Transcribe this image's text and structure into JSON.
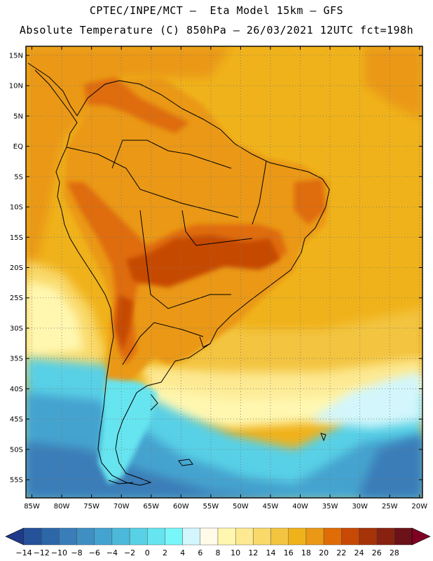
{
  "header": {
    "title_line1": "CPTEC/INPE/MCT –  Eta Model 15km – GFS",
    "title_line2": "Absolute Temperature (C) 850hPa – 26/03/2021 12UTC fct=198h"
  },
  "map": {
    "region": "South America",
    "variable": "Absolute Temperature (C) 850hPa",
    "lon_range": [
      -86,
      -19.5
    ],
    "lat_range": [
      -58,
      16.5
    ],
    "lat_ticks": [
      "15N",
      "10N",
      "5N",
      "EQ",
      "5S",
      "10S",
      "15S",
      "20S",
      "25S",
      "30S",
      "35S",
      "40S",
      "45S",
      "50S",
      "55S"
    ],
    "lat_values": [
      15,
      10,
      5,
      0,
      -5,
      -10,
      -15,
      -20,
      -25,
      -30,
      -35,
      -40,
      -45,
      -50,
      -55
    ],
    "lon_ticks": [
      "85W",
      "80W",
      "75W",
      "70W",
      "65W",
      "60W",
      "55W",
      "50W",
      "45W",
      "40W",
      "35W",
      "30W",
      "25W",
      "20W"
    ],
    "lon_values": [
      -85,
      -80,
      -75,
      -70,
      -65,
      -60,
      -55,
      -50,
      -45,
      -40,
      -35,
      -30,
      -25,
      -20
    ]
  },
  "colorbar": {
    "labels": [
      "-14",
      "-12",
      "-10",
      "-8",
      "-6",
      "-4",
      "-2",
      "0",
      "2",
      "4",
      "6",
      "8",
      "10",
      "12",
      "14",
      "16",
      "18",
      "20",
      "22",
      "24",
      "26",
      "28"
    ],
    "colors": [
      "#1f3a8a",
      "#26529a",
      "#2c67a8",
      "#3a7db8",
      "#3f8fc2",
      "#44a3cf",
      "#4cb9da",
      "#58d0e6",
      "#66e4ef",
      "#78f6f8",
      "#d2f6fb",
      "#fffbe8",
      "#fff7b0",
      "#fde992",
      "#f9d96a",
      "#f3c440",
      "#f0b21b",
      "#ea9815",
      "#df6c07",
      "#c64a06",
      "#a63308",
      "#872210",
      "#6a1218",
      "#800024"
    ]
  },
  "colors": {
    "ocean_base": "#f0b21b",
    "land_warm": "#ea9815",
    "land_hot": "#c64a06",
    "coast_line": "#000000"
  }
}
